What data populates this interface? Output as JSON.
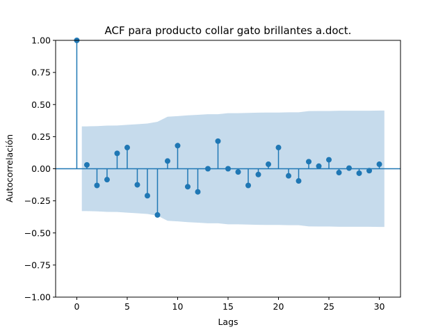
{
  "chart_data": {
    "type": "stem",
    "title": "ACF para producto collar gato brillantes a.doct.",
    "xlabel": "Lags",
    "ylabel": "Autocorrelación",
    "xlim": [
      -2.1,
      32.1
    ],
    "ylim": [
      -1.0,
      1.0
    ],
    "xticks": [
      0,
      5,
      10,
      15,
      20,
      25,
      30
    ],
    "xtick_labels": [
      "0",
      "5",
      "10",
      "15",
      "20",
      "25",
      "30"
    ],
    "yticks": [
      -1.0,
      -0.75,
      -0.5,
      -0.25,
      0.0,
      0.25,
      0.5,
      0.75,
      1.0
    ],
    "ytick_labels": [
      "−1.00",
      "−0.75",
      "−0.50",
      "−0.25",
      "0.00",
      "0.25",
      "0.50",
      "0.75",
      "1.00"
    ],
    "grid": false,
    "colors": {
      "stem": "#1f77b4",
      "band": "#c6dbec"
    },
    "lags": [
      0,
      1,
      2,
      3,
      4,
      5,
      6,
      7,
      8,
      9,
      10,
      11,
      12,
      13,
      14,
      15,
      16,
      17,
      18,
      19,
      20,
      21,
      22,
      23,
      24,
      25,
      26,
      27,
      28,
      29,
      30
    ],
    "acf": [
      1.0,
      0.03,
      -0.13,
      -0.085,
      0.12,
      0.165,
      -0.125,
      -0.21,
      -0.36,
      0.06,
      0.18,
      -0.14,
      -0.18,
      0.0,
      0.215,
      0.0,
      -0.025,
      -0.13,
      -0.045,
      0.035,
      0.165,
      -0.055,
      -0.095,
      0.055,
      0.02,
      0.07,
      -0.03,
      0.005,
      -0.035,
      -0.015,
      0.035
    ],
    "confidence_band": {
      "x": [
        0.5,
        1,
        2,
        3,
        4,
        5,
        6,
        7,
        8,
        9,
        10,
        11,
        12,
        13,
        14,
        15,
        16,
        17,
        18,
        19,
        20,
        21,
        22,
        23,
        24,
        25,
        26,
        27,
        28,
        29,
        30,
        30.5
      ],
      "upper": [
        0.33,
        0.33,
        0.332,
        0.336,
        0.337,
        0.342,
        0.347,
        0.352,
        0.366,
        0.405,
        0.41,
        0.416,
        0.42,
        0.425,
        0.425,
        0.433,
        0.433,
        0.435,
        0.437,
        0.438,
        0.438,
        0.44,
        0.44,
        0.449,
        0.45,
        0.45,
        0.452,
        0.452,
        0.452,
        0.452,
        0.453,
        0.453
      ]
    }
  }
}
